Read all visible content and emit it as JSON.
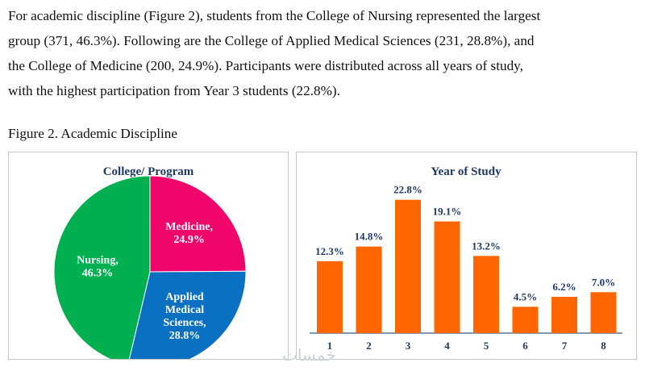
{
  "paragraph": {
    "line1": "For academic discipline (Figure 2), students from the College of Nursing represented the largest",
    "line2": "group (371, 46.3%). Following are the College of Applied Medical Sciences (231, 28.8%), and",
    "line3": "the College of Medicine (200, 24.9%). Participants were distributed across all years of study,",
    "line4": "with the highest participation from Year 3 students (22.8%)."
  },
  "figure_caption": "Figure 2. Academic Discipline",
  "watermark": "خمسات",
  "colors": {
    "medicine": "#F0056A",
    "applied": "#0A70C2",
    "nursing": "#00B050",
    "bar": "#FF6600",
    "title": "#1F3864",
    "label": "#1F3864"
  },
  "chart_data": [
    {
      "type": "pie",
      "title": "College/ Program",
      "categories": [
        "Medicine",
        "Applied Medical Sciences",
        "Nursing"
      ],
      "values": [
        24.9,
        28.8,
        46.3
      ],
      "counts": [
        200,
        231,
        371
      ],
      "slice_labels": [
        {
          "lines": [
            "Medicine,",
            "24.9%"
          ]
        },
        {
          "lines": [
            "Applied",
            "Medical",
            "Sciences,",
            "28.8%"
          ]
        },
        {
          "lines": [
            "Nursing,",
            "46.3%"
          ]
        }
      ],
      "start": "12 o'clock, clockwise"
    },
    {
      "type": "bar",
      "title": "Year of Study",
      "categories": [
        "1",
        "2",
        "3",
        "4",
        "5",
        "6",
        "7",
        "8"
      ],
      "values": [
        12.3,
        14.8,
        22.8,
        19.1,
        13.2,
        4.5,
        6.2,
        7.0
      ],
      "data_labels": [
        "12.3%",
        "14.8%",
        "22.8%",
        "19.1%",
        "13.2%",
        "4.5%",
        "6.2%",
        "7.0%"
      ],
      "ylim": [
        0,
        24
      ],
      "xlabel": "",
      "ylabel": "",
      "grid": false
    }
  ]
}
